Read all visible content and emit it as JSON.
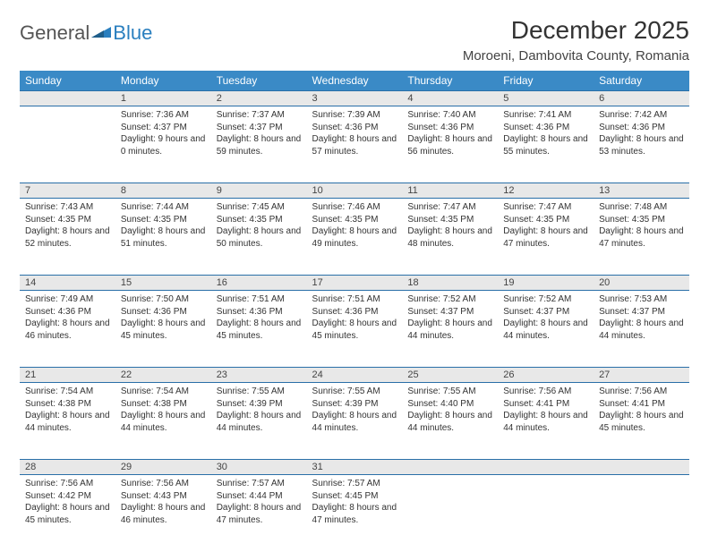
{
  "logo": {
    "text1": "General",
    "text2": "Blue"
  },
  "title": "December 2025",
  "location": "Moroeni, Dambovita County, Romania",
  "day_headers": [
    "Sunday",
    "Monday",
    "Tuesday",
    "Wednesday",
    "Thursday",
    "Friday",
    "Saturday"
  ],
  "header_bg": "#3a8ac6",
  "header_fg": "#ffffff",
  "daynum_bg": "#e8e8e8",
  "rule_color": "#2a6fa8",
  "weeks": [
    [
      null,
      {
        "n": "1",
        "sr": "7:36 AM",
        "ss": "4:37 PM",
        "dl": "9 hours and 0 minutes."
      },
      {
        "n": "2",
        "sr": "7:37 AM",
        "ss": "4:37 PM",
        "dl": "8 hours and 59 minutes."
      },
      {
        "n": "3",
        "sr": "7:39 AM",
        "ss": "4:36 PM",
        "dl": "8 hours and 57 minutes."
      },
      {
        "n": "4",
        "sr": "7:40 AM",
        "ss": "4:36 PM",
        "dl": "8 hours and 56 minutes."
      },
      {
        "n": "5",
        "sr": "7:41 AM",
        "ss": "4:36 PM",
        "dl": "8 hours and 55 minutes."
      },
      {
        "n": "6",
        "sr": "7:42 AM",
        "ss": "4:36 PM",
        "dl": "8 hours and 53 minutes."
      }
    ],
    [
      {
        "n": "7",
        "sr": "7:43 AM",
        "ss": "4:35 PM",
        "dl": "8 hours and 52 minutes."
      },
      {
        "n": "8",
        "sr": "7:44 AM",
        "ss": "4:35 PM",
        "dl": "8 hours and 51 minutes."
      },
      {
        "n": "9",
        "sr": "7:45 AM",
        "ss": "4:35 PM",
        "dl": "8 hours and 50 minutes."
      },
      {
        "n": "10",
        "sr": "7:46 AM",
        "ss": "4:35 PM",
        "dl": "8 hours and 49 minutes."
      },
      {
        "n": "11",
        "sr": "7:47 AM",
        "ss": "4:35 PM",
        "dl": "8 hours and 48 minutes."
      },
      {
        "n": "12",
        "sr": "7:47 AM",
        "ss": "4:35 PM",
        "dl": "8 hours and 47 minutes."
      },
      {
        "n": "13",
        "sr": "7:48 AM",
        "ss": "4:35 PM",
        "dl": "8 hours and 47 minutes."
      }
    ],
    [
      {
        "n": "14",
        "sr": "7:49 AM",
        "ss": "4:36 PM",
        "dl": "8 hours and 46 minutes."
      },
      {
        "n": "15",
        "sr": "7:50 AM",
        "ss": "4:36 PM",
        "dl": "8 hours and 45 minutes."
      },
      {
        "n": "16",
        "sr": "7:51 AM",
        "ss": "4:36 PM",
        "dl": "8 hours and 45 minutes."
      },
      {
        "n": "17",
        "sr": "7:51 AM",
        "ss": "4:36 PM",
        "dl": "8 hours and 45 minutes."
      },
      {
        "n": "18",
        "sr": "7:52 AM",
        "ss": "4:37 PM",
        "dl": "8 hours and 44 minutes."
      },
      {
        "n": "19",
        "sr": "7:52 AM",
        "ss": "4:37 PM",
        "dl": "8 hours and 44 minutes."
      },
      {
        "n": "20",
        "sr": "7:53 AM",
        "ss": "4:37 PM",
        "dl": "8 hours and 44 minutes."
      }
    ],
    [
      {
        "n": "21",
        "sr": "7:54 AM",
        "ss": "4:38 PM",
        "dl": "8 hours and 44 minutes."
      },
      {
        "n": "22",
        "sr": "7:54 AM",
        "ss": "4:38 PM",
        "dl": "8 hours and 44 minutes."
      },
      {
        "n": "23",
        "sr": "7:55 AM",
        "ss": "4:39 PM",
        "dl": "8 hours and 44 minutes."
      },
      {
        "n": "24",
        "sr": "7:55 AM",
        "ss": "4:39 PM",
        "dl": "8 hours and 44 minutes."
      },
      {
        "n": "25",
        "sr": "7:55 AM",
        "ss": "4:40 PM",
        "dl": "8 hours and 44 minutes."
      },
      {
        "n": "26",
        "sr": "7:56 AM",
        "ss": "4:41 PM",
        "dl": "8 hours and 44 minutes."
      },
      {
        "n": "27",
        "sr": "7:56 AM",
        "ss": "4:41 PM",
        "dl": "8 hours and 45 minutes."
      }
    ],
    [
      {
        "n": "28",
        "sr": "7:56 AM",
        "ss": "4:42 PM",
        "dl": "8 hours and 45 minutes."
      },
      {
        "n": "29",
        "sr": "7:56 AM",
        "ss": "4:43 PM",
        "dl": "8 hours and 46 minutes."
      },
      {
        "n": "30",
        "sr": "7:57 AM",
        "ss": "4:44 PM",
        "dl": "8 hours and 47 minutes."
      },
      {
        "n": "31",
        "sr": "7:57 AM",
        "ss": "4:45 PM",
        "dl": "8 hours and 47 minutes."
      },
      null,
      null,
      null
    ]
  ],
  "labels": {
    "sunrise": "Sunrise: ",
    "sunset": "Sunset: ",
    "daylight": "Daylight: "
  }
}
